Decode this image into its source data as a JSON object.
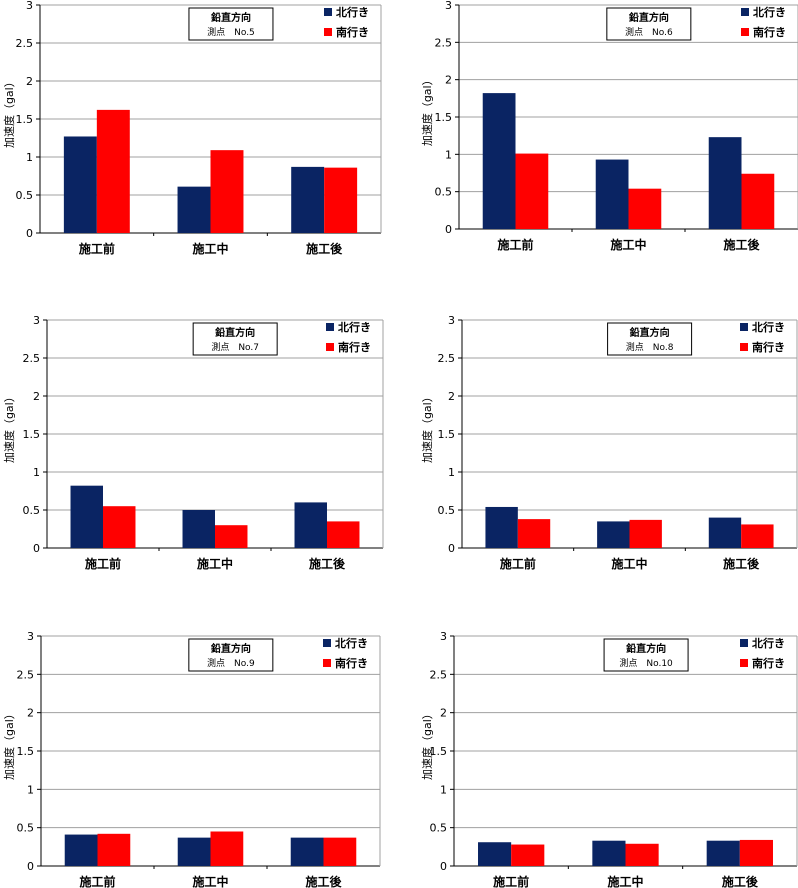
{
  "colors": {
    "north": "#0a2463",
    "south": "#ff0000",
    "grid": "#a0a0a0",
    "axis": "#000000"
  },
  "chart_data": [
    {
      "type": "bar",
      "title_line1": "鉛直方向",
      "title_line2": "測点　No.5",
      "ylabel": "加速度（gal）",
      "ylim": [
        0,
        3
      ],
      "yticks": [
        "0",
        "0.5",
        "1",
        "1.5",
        "2",
        "2.5",
        "3"
      ],
      "categories": [
        "施工前",
        "施工中",
        "施工後"
      ],
      "series": [
        {
          "name": "北行き",
          "values": [
            1.27,
            0.61,
            0.87
          ]
        },
        {
          "name": "南行き",
          "values": [
            1.62,
            1.09,
            0.86
          ]
        }
      ]
    },
    {
      "type": "bar",
      "title_line1": "鉛直方向",
      "title_line2": "測点　No.6",
      "ylabel": "加速度（gal）",
      "ylim": [
        0,
        3
      ],
      "yticks": [
        "0",
        "0.5",
        "1",
        "1.5",
        "2",
        "2.5",
        "3"
      ],
      "categories": [
        "施工前",
        "施工中",
        "施工後"
      ],
      "series": [
        {
          "name": "北行き",
          "values": [
            1.82,
            0.93,
            1.23
          ]
        },
        {
          "name": "南行き",
          "values": [
            1.01,
            0.54,
            0.74
          ]
        }
      ]
    },
    {
      "type": "bar",
      "title_line1": "鉛直方向",
      "title_line2": "測点　No.7",
      "ylabel": "加速度（gal）",
      "ylim": [
        0,
        3
      ],
      "yticks": [
        "0",
        "0.5",
        "1",
        "1.5",
        "2",
        "2.5",
        "3"
      ],
      "categories": [
        "施工前",
        "施工中",
        "施工後"
      ],
      "series": [
        {
          "name": "北行き",
          "values": [
            0.82,
            0.5,
            0.6
          ]
        },
        {
          "name": "南行き",
          "values": [
            0.55,
            0.3,
            0.35
          ]
        }
      ]
    },
    {
      "type": "bar",
      "title_line1": "鉛直方向",
      "title_line2": "測点　No.8",
      "ylabel": "加速度（gal）",
      "ylim": [
        0,
        3
      ],
      "yticks": [
        "0",
        "0.5",
        "1",
        "1.5",
        "2",
        "2.5",
        "3"
      ],
      "categories": [
        "施工前",
        "施工中",
        "施工後"
      ],
      "series": [
        {
          "name": "北行き",
          "values": [
            0.54,
            0.35,
            0.4
          ]
        },
        {
          "name": "南行き",
          "values": [
            0.38,
            0.37,
            0.31
          ]
        }
      ]
    },
    {
      "type": "bar",
      "title_line1": "鉛直方向",
      "title_line2": "測点　No.9",
      "ylabel": "加速度（gal）",
      "ylim": [
        0,
        3
      ],
      "yticks": [
        "0",
        "0.5",
        "1",
        "1.5",
        "2",
        "2.5",
        "3"
      ],
      "categories": [
        "施工前",
        "施工中",
        "施工後"
      ],
      "series": [
        {
          "name": "北行き",
          "values": [
            0.41,
            0.37,
            0.37
          ]
        },
        {
          "name": "南行き",
          "values": [
            0.42,
            0.45,
            0.37
          ]
        }
      ]
    },
    {
      "type": "bar",
      "title_line1": "鉛直方向",
      "title_line2": "測点　No.10",
      "ylabel": "加速度（gal）",
      "ylim": [
        0,
        3
      ],
      "yticks": [
        "0",
        "0.5",
        "1",
        "1.5",
        "2",
        "2.5",
        "3"
      ],
      "categories": [
        "施工前",
        "施工中",
        "施工後"
      ],
      "series": [
        {
          "name": "北行き",
          "values": [
            0.31,
            0.33,
            0.33
          ]
        },
        {
          "name": "南行き",
          "values": [
            0.28,
            0.29,
            0.34
          ]
        }
      ]
    }
  ]
}
